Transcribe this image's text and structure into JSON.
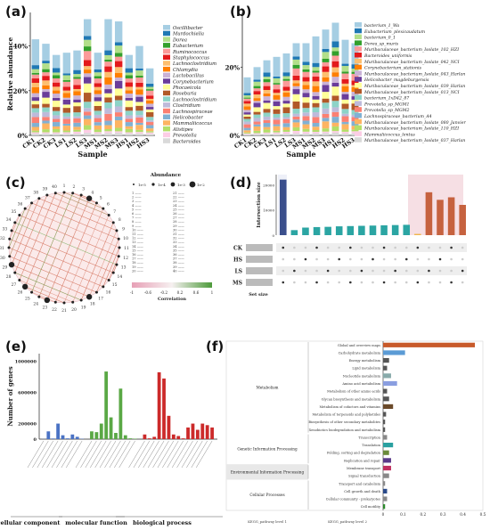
{
  "panels": {
    "a": "(a)",
    "b": "(b)",
    "c": "(c)",
    "d": "(d)",
    "e": "(e)",
    "f": "(f)"
  },
  "chart_data": [
    {
      "id": "a",
      "type": "bar",
      "stacked": true,
      "xlabel": "Sample",
      "ylabel": "Relative abundance",
      "yticks": [
        "0%",
        "20%",
        "40%"
      ],
      "ylim": [
        0,
        0.55
      ],
      "categories": [
        "CK1",
        "CK2",
        "CK3",
        "LS1",
        "LS2",
        "LS3",
        "MS1",
        "MS2",
        "MS3",
        "HS1",
        "HS2",
        "HS3"
      ],
      "totals": [
        0.43,
        0.41,
        0.36,
        0.37,
        0.38,
        0.52,
        0.37,
        0.52,
        0.51,
        0.36,
        0.4,
        0.3
      ],
      "legend": [
        "Oscillibacter",
        "Murdochiella",
        "Dorea",
        "Eubacterium",
        "Ruminococcus",
        "Staphylococcus",
        "Lachnoclostridium",
        "Chlamydia",
        "Lactobacillus",
        "Corynebacterium",
        "Phocaeicola",
        "Roseburia",
        "Lachnoclostridium",
        "Clostridium",
        "Lachnospiraceae",
        "Helicobacter",
        "Mammaliicoccus",
        "Alistipes",
        "Prevotella",
        "Bacteroides"
      ],
      "colors": [
        "#a6cee3",
        "#1f78b4",
        "#b2df8a",
        "#33a02c",
        "#fb9a99",
        "#e31a1c",
        "#fdbf6f",
        "#ff7f00",
        "#cab2d6",
        "#6a3d9a",
        "#ffff99",
        "#b15928",
        "#8dd3c7",
        "#bebada",
        "#fb8072",
        "#80b1d3",
        "#fdb462",
        "#b3de69",
        "#fccde5",
        "#d9d9d9"
      ]
    },
    {
      "id": "b",
      "type": "bar",
      "stacked": true,
      "xlabel": "Sample",
      "ylabel": "Relative abundance",
      "yticks": [
        "0%",
        "20%"
      ],
      "ylim": [
        0,
        0.36
      ],
      "categories": [
        "CK1",
        "CK2",
        "CK3",
        "LS1",
        "LS2",
        "LS3",
        "MS1",
        "MS2",
        "MS3",
        "HS1",
        "HS2",
        "HS3"
      ],
      "totals": [
        0.17,
        0.2,
        0.22,
        0.23,
        0.24,
        0.27,
        0.27,
        0.29,
        0.31,
        0.33,
        0.28,
        0.27
      ],
      "legend": [
        "bacterium_1_Wa",
        "Eubacterium_plexicaudatum",
        "bacterium_0_1",
        "Dorea_sp_muris",
        "Muribaculaceae_bacterium_Isolate_102_HZI",
        "Bacteroides_uniformis",
        "Muribaculaceae_bacterium_Isolate_042_NCI",
        "Corynebacterium_stationis",
        "Muribaculaceae_bacterium_Isolate_043_Harlan",
        "Helicobacter_magdeburgensis",
        "Muribaculaceae_bacterium_Isolate_039_Harlan",
        "Muribaculaceae_bacterium_Isolate_013_NCI",
        "bacterium_1xD42_87",
        "Prevotella_sp_MGM1",
        "Prevotella_sp_MGM2",
        "Lachnospiraceae_bacterium_A4",
        "Muribaculaceae_bacterium_Isolate_080_Janvier",
        "Muribaculaceae_bacterium_Isolate_110_HZI",
        "Mammaliicoccus_lentus",
        "Muribaculaceae_bacterium_Isolate_037_Harlan"
      ],
      "colors": [
        "#a6cee3",
        "#1f78b4",
        "#b2df8a",
        "#33a02c",
        "#fb9a99",
        "#e31a1c",
        "#fdbf6f",
        "#ff7f00",
        "#cab2d6",
        "#6a3d9a",
        "#ffff99",
        "#b15928",
        "#8dd3c7",
        "#bebada",
        "#fb8072",
        "#80b1d3",
        "#fdb462",
        "#b3de69",
        "#fccde5",
        "#d9d9d9"
      ]
    },
    {
      "id": "c",
      "type": "network",
      "legend_title": "Abundance",
      "abundance_levels": [
        "1e-5",
        "1e-4",
        "1e-3",
        "1e-2"
      ],
      "colorbar_title": "Correlation",
      "colorbar_ticks": [
        "-1",
        "-0.6",
        "-0.2",
        "0.2",
        "0.6",
        "1"
      ],
      "node_count": 40
    },
    {
      "id": "d",
      "type": "bar",
      "subtype": "upset",
      "ylabel": "Intersection size",
      "yticks": [
        "0",
        "10000",
        "20000"
      ],
      "xlabel_sets": "Set size",
      "sets": [
        "CK",
        "HS",
        "LS",
        "MS"
      ],
      "intersection_values": [
        22000,
        2000,
        3000,
        3200,
        3300,
        3500,
        3600,
        3700,
        3800,
        3900,
        4000,
        4100,
        500,
        17000,
        14000,
        15000,
        12000
      ],
      "intersection_colors": [
        "#3b4f8c",
        "#2ba5a3",
        "#2ba5a3",
        "#2ba5a3",
        "#2ba5a3",
        "#2ba5a3",
        "#2ba5a3",
        "#2ba5a3",
        "#2ba5a3",
        "#2ba5a3",
        "#2ba5a3",
        "#2ba5a3",
        "#f0b64a",
        "#c6623f",
        "#c6623f",
        "#c6623f",
        "#c6623f"
      ]
    },
    {
      "id": "e",
      "type": "bar",
      "ylabel": "Number of genes",
      "yticks": [
        "0",
        "200000",
        "400000",
        "600000",
        "800000",
        "1000000"
      ],
      "ylim": [
        0,
        1100000
      ],
      "groups": [
        "cellular component",
        "molecular function",
        "biological process"
      ],
      "values": [
        [
          2000,
          100000,
          8000,
          200000,
          50000,
          10000,
          60000,
          30000,
          4000
        ],
        [
          100000,
          90000,
          200000,
          870000,
          280000,
          80000,
          650000,
          50000,
          10000,
          6000
        ],
        [
          60000,
          10000,
          30000,
          860000,
          780000,
          300000,
          60000,
          40000,
          10000,
          150000,
          200000,
          120000,
          200000,
          180000,
          150000
        ]
      ],
      "group_colors": [
        "#4a72c4",
        "#5aa845",
        "#cc2a2a"
      ]
    },
    {
      "id": "f",
      "type": "bar",
      "orientation": "horizontal",
      "xlabel_left": "KEGG_pathway level 1",
      "xlabel_mid": "KEGG_pathway level 2",
      "xticks": [
        "0",
        "0.1",
        "0.2",
        "0.3",
        "0.4",
        "0.5"
      ],
      "xlim": [
        0,
        0.5
      ],
      "level1": [
        "Metabolism",
        "Genetic Information Processing",
        "Environmental Information Processing",
        "Cellular Processes"
      ],
      "level2": [
        "Global and overview maps",
        "Carbohydrate metabolism",
        "Energy metabolism",
        "Lipid metabolism",
        "Nucleotide metabolism",
        "Amino acid metabolism",
        "Metabolism of other amino acids",
        "Glycan biosynthesis and metabolism",
        "Metabolism of cofactors and vitamins",
        "Metabolism of terpenoids and polyketides",
        "Biosynthesis of other secondary metabolites",
        "Xenobiotics biodegradation and metabolism",
        "Transcription",
        "Translation",
        "Folding, sorting and degradation",
        "Replication and repair",
        "Membrane transport",
        "Signal transduction",
        "Transport and catabolism",
        "Cell growth and death",
        "Cellular community - prokaryotes",
        "Cell motility"
      ],
      "values": [
        0.46,
        0.11,
        0.03,
        0.02,
        0.04,
        0.07,
        0.02,
        0.03,
        0.05,
        0.015,
        0.01,
        0.01,
        0.02,
        0.05,
        0.03,
        0.04,
        0.04,
        0.03,
        0.01,
        0.02,
        0.02,
        0.01
      ],
      "colors": [
        "#c85a2a",
        "#5b9bd5",
        "#555",
        "#555",
        "#8aa",
        "#8a9ee0",
        "#555",
        "#555",
        "#6b4a2a",
        "#555",
        "#555",
        "#555",
        "#888",
        "#2aa0a0",
        "#6a8a3a",
        "#5a3a8a",
        "#c03060",
        "#888",
        "#888",
        "#2a4a8a",
        "#888",
        "#2a8a2a"
      ]
    }
  ]
}
